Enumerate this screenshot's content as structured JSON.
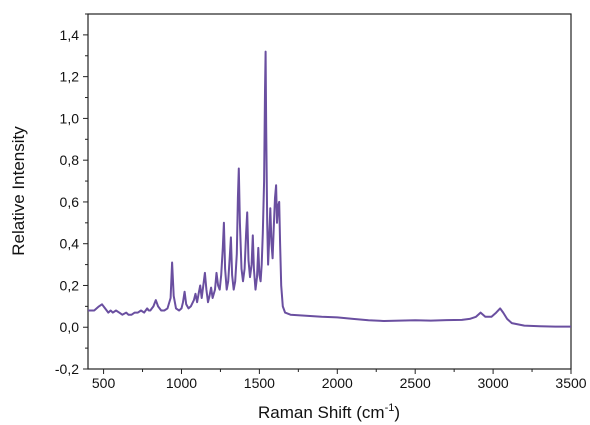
{
  "chart_data": {
    "type": "line",
    "xlabel": "Raman Shift (cm",
    "xlabel_superscript": "-1",
    "xlabel_suffix": ")",
    "ylabel": "Relative Intensity",
    "xlim": [
      400,
      3500
    ],
    "ylim": [
      -0.2,
      1.5
    ],
    "x_ticks": [
      500,
      1000,
      1500,
      2000,
      2500,
      3000,
      3500
    ],
    "x_tick_labels": [
      "500",
      "1000",
      "1500",
      "2000",
      "2500",
      "3000",
      "3500"
    ],
    "y_ticks": [
      -0.2,
      0.0,
      0.2,
      0.4,
      0.6,
      0.8,
      1.0,
      1.2,
      1.4
    ],
    "y_tick_labels": [
      "-0,2",
      "0,0",
      "0,2",
      "0,4",
      "0,6",
      "0,8",
      "1,0",
      "1,2",
      "1,4"
    ],
    "grid": false,
    "series": [
      {
        "color": "#6a4fa0",
        "points": [
          [
            400,
            0.08
          ],
          [
            440,
            0.08
          ],
          [
            470,
            0.1
          ],
          [
            490,
            0.11
          ],
          [
            510,
            0.09
          ],
          [
            530,
            0.07
          ],
          [
            545,
            0.08
          ],
          [
            560,
            0.07
          ],
          [
            580,
            0.08
          ],
          [
            600,
            0.07
          ],
          [
            620,
            0.06
          ],
          [
            645,
            0.07
          ],
          [
            660,
            0.06
          ],
          [
            680,
            0.06
          ],
          [
            700,
            0.07
          ],
          [
            720,
            0.07
          ],
          [
            740,
            0.08
          ],
          [
            760,
            0.07
          ],
          [
            780,
            0.09
          ],
          [
            790,
            0.08
          ],
          [
            800,
            0.08
          ],
          [
            820,
            0.1
          ],
          [
            835,
            0.13
          ],
          [
            850,
            0.1
          ],
          [
            870,
            0.08
          ],
          [
            890,
            0.08
          ],
          [
            910,
            0.09
          ],
          [
            930,
            0.14
          ],
          [
            940,
            0.31
          ],
          [
            950,
            0.15
          ],
          [
            965,
            0.09
          ],
          [
            985,
            0.08
          ],
          [
            1000,
            0.09
          ],
          [
            1010,
            0.12
          ],
          [
            1020,
            0.17
          ],
          [
            1030,
            0.11
          ],
          [
            1045,
            0.09
          ],
          [
            1060,
            0.1
          ],
          [
            1080,
            0.13
          ],
          [
            1090,
            0.16
          ],
          [
            1100,
            0.12
          ],
          [
            1110,
            0.16
          ],
          [
            1120,
            0.2
          ],
          [
            1130,
            0.14
          ],
          [
            1140,
            0.2
          ],
          [
            1150,
            0.26
          ],
          [
            1160,
            0.18
          ],
          [
            1170,
            0.12
          ],
          [
            1180,
            0.15
          ],
          [
            1190,
            0.19
          ],
          [
            1200,
            0.14
          ],
          [
            1215,
            0.18
          ],
          [
            1225,
            0.26
          ],
          [
            1235,
            0.2
          ],
          [
            1245,
            0.18
          ],
          [
            1255,
            0.25
          ],
          [
            1265,
            0.38
          ],
          [
            1272,
            0.5
          ],
          [
            1280,
            0.28
          ],
          [
            1290,
            0.18
          ],
          [
            1300,
            0.22
          ],
          [
            1310,
            0.34
          ],
          [
            1317,
            0.43
          ],
          [
            1325,
            0.25
          ],
          [
            1335,
            0.18
          ],
          [
            1345,
            0.22
          ],
          [
            1355,
            0.35
          ],
          [
            1362,
            0.62
          ],
          [
            1368,
            0.76
          ],
          [
            1375,
            0.5
          ],
          [
            1385,
            0.28
          ],
          [
            1395,
            0.22
          ],
          [
            1405,
            0.28
          ],
          [
            1415,
            0.45
          ],
          [
            1422,
            0.55
          ],
          [
            1430,
            0.32
          ],
          [
            1440,
            0.24
          ],
          [
            1450,
            0.3
          ],
          [
            1458,
            0.44
          ],
          [
            1465,
            0.28
          ],
          [
            1475,
            0.18
          ],
          [
            1485,
            0.24
          ],
          [
            1493,
            0.38
          ],
          [
            1500,
            0.25
          ],
          [
            1508,
            0.22
          ],
          [
            1515,
            0.3
          ],
          [
            1522,
            0.45
          ],
          [
            1530,
            0.7
          ],
          [
            1536,
            1.13
          ],
          [
            1540,
            1.32
          ],
          [
            1544,
            0.95
          ],
          [
            1550,
            0.5
          ],
          [
            1556,
            0.3
          ],
          [
            1562,
            0.4
          ],
          [
            1570,
            0.57
          ],
          [
            1578,
            0.4
          ],
          [
            1585,
            0.33
          ],
          [
            1592,
            0.47
          ],
          [
            1600,
            0.62
          ],
          [
            1607,
            0.68
          ],
          [
            1613,
            0.5
          ],
          [
            1620,
            0.58
          ],
          [
            1627,
            0.6
          ],
          [
            1633,
            0.4
          ],
          [
            1640,
            0.2
          ],
          [
            1650,
            0.1
          ],
          [
            1665,
            0.07
          ],
          [
            1700,
            0.06
          ],
          [
            1800,
            0.055
          ],
          [
            1900,
            0.05
          ],
          [
            2000,
            0.047
          ],
          [
            2100,
            0.04
          ],
          [
            2200,
            0.033
          ],
          [
            2300,
            0.03
          ],
          [
            2400,
            0.032
          ],
          [
            2500,
            0.033
          ],
          [
            2600,
            0.032
          ],
          [
            2700,
            0.034
          ],
          [
            2800,
            0.035
          ],
          [
            2850,
            0.04
          ],
          [
            2890,
            0.05
          ],
          [
            2920,
            0.07
          ],
          [
            2950,
            0.05
          ],
          [
            2990,
            0.05
          ],
          [
            3020,
            0.07
          ],
          [
            3045,
            0.09
          ],
          [
            3065,
            0.07
          ],
          [
            3090,
            0.04
          ],
          [
            3120,
            0.02
          ],
          [
            3200,
            0.008
          ],
          [
            3300,
            0.005
          ],
          [
            3400,
            0.003
          ],
          [
            3500,
            0.003
          ]
        ]
      }
    ]
  }
}
